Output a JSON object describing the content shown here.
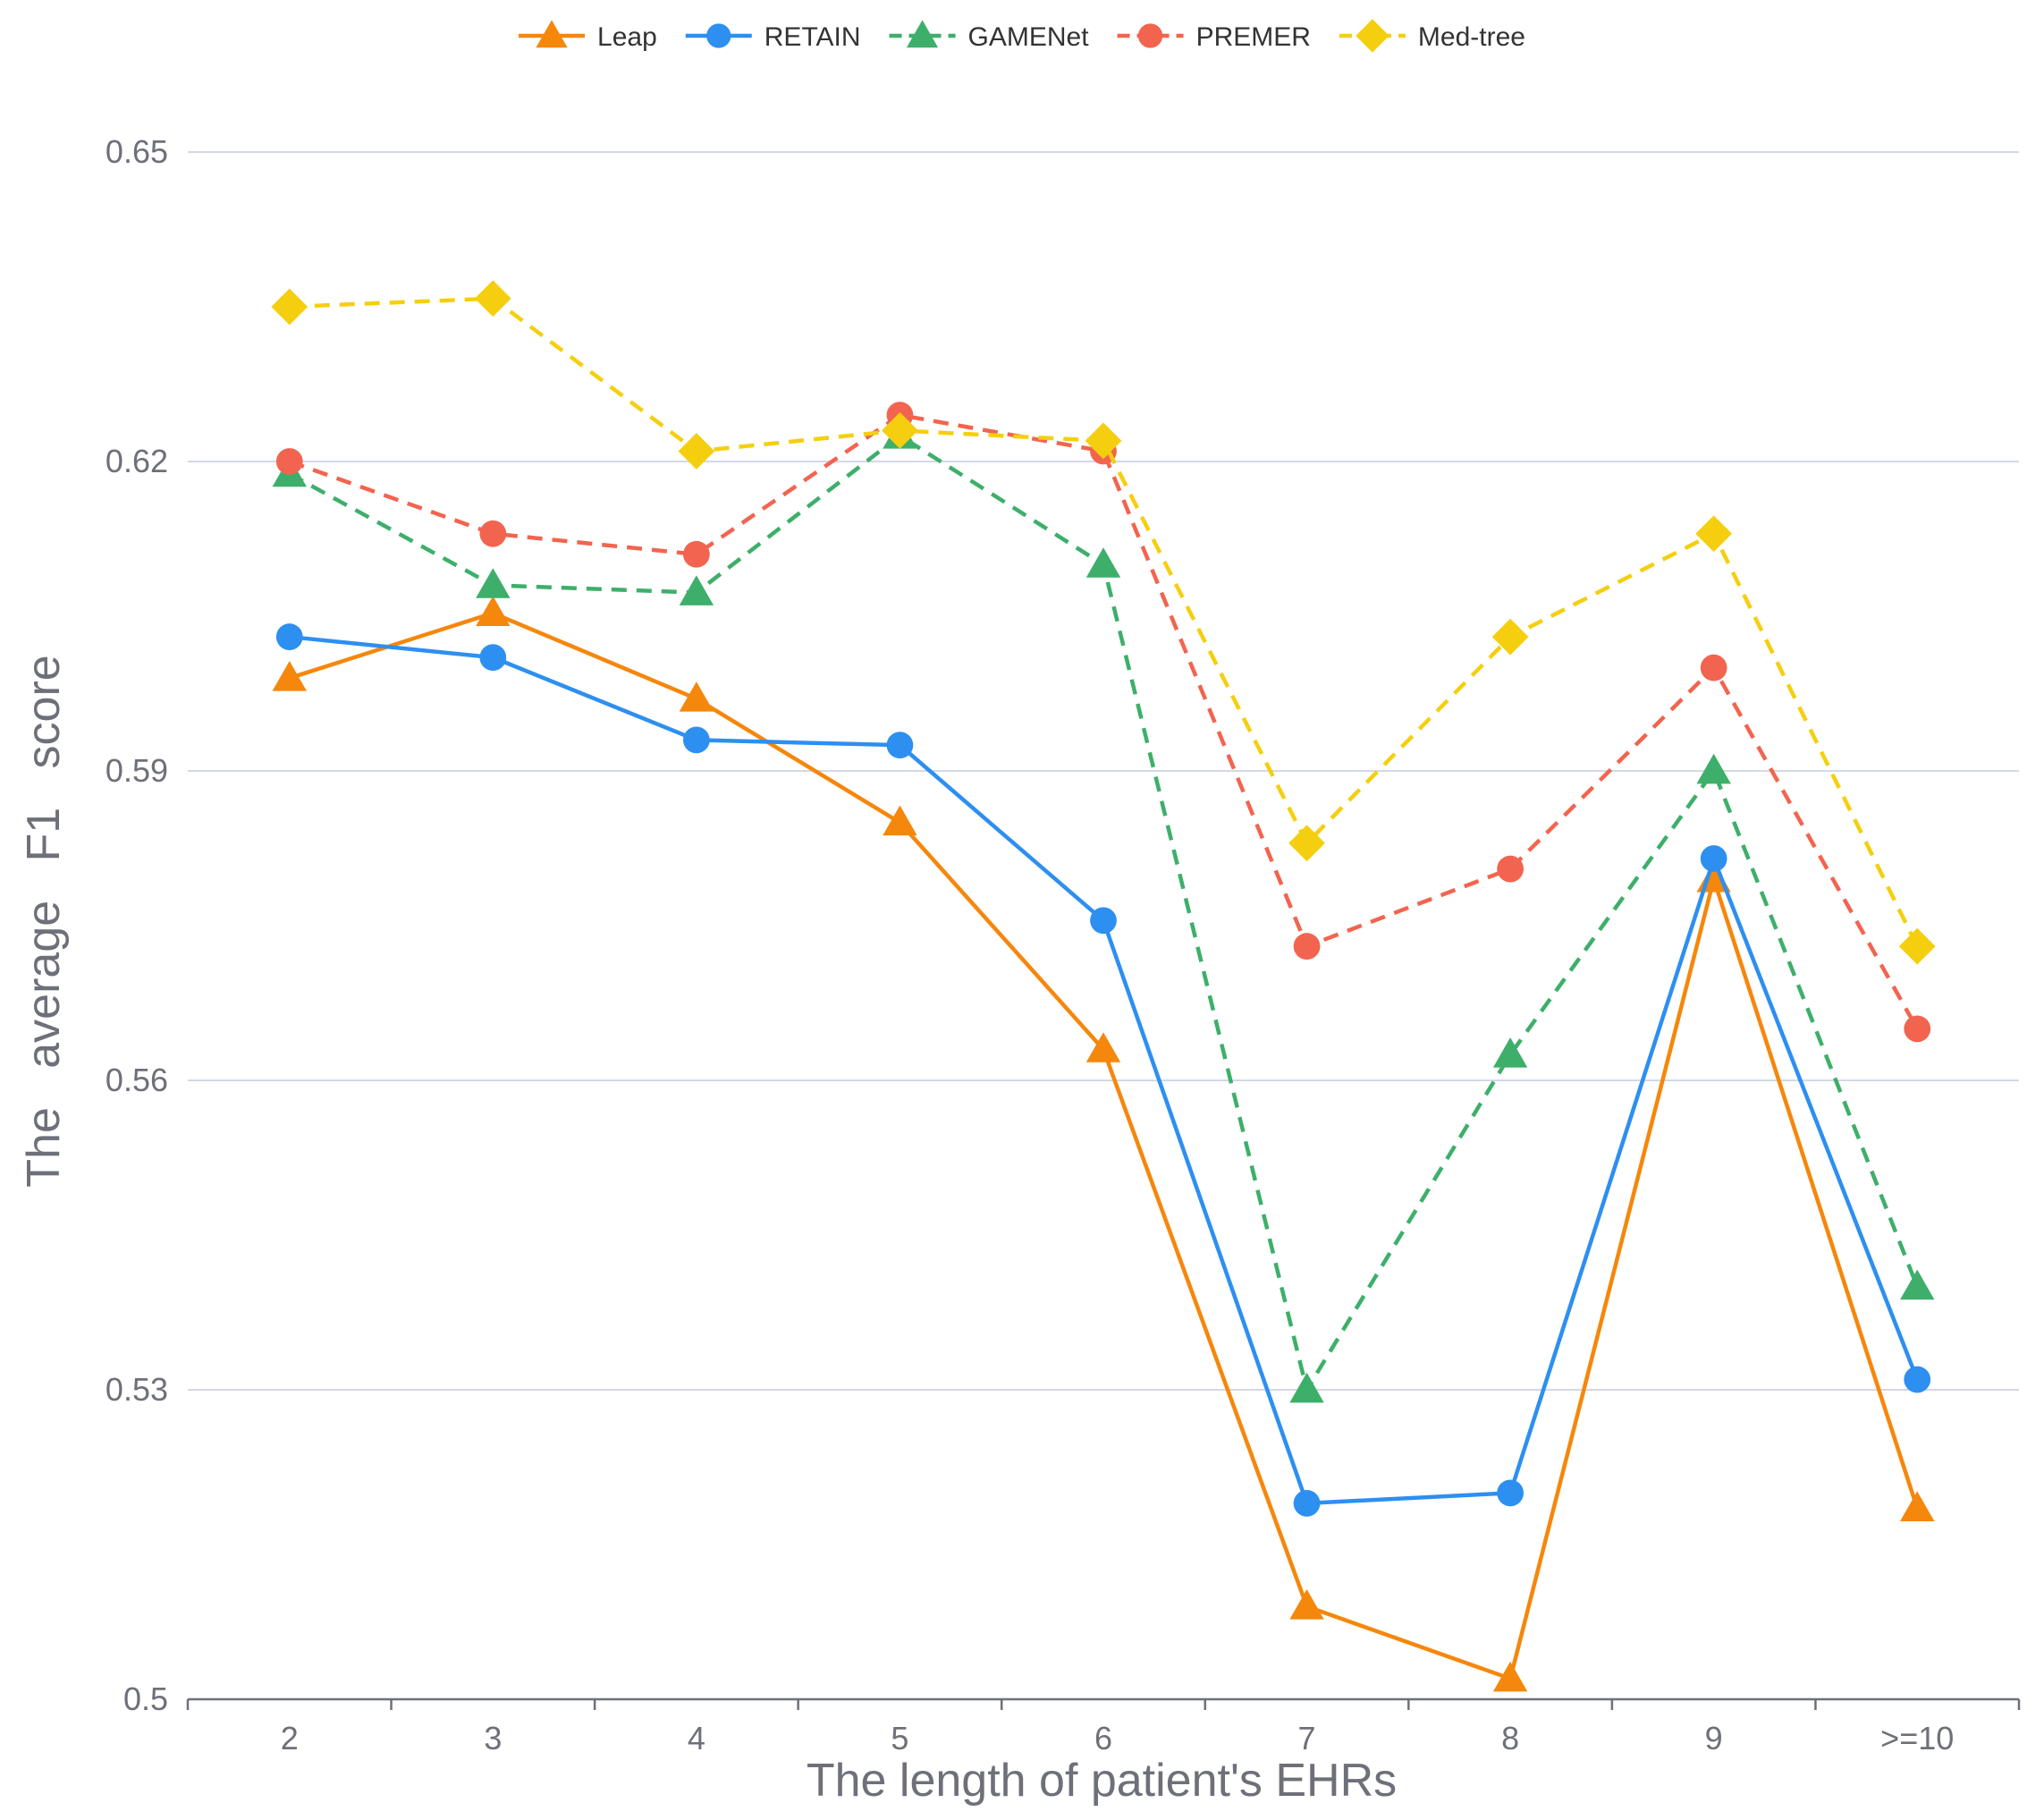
{
  "chart_data": {
    "type": "line",
    "title": "",
    "xlabel": "The length of patient's EHRs",
    "ylabel": "The   average   F1   score",
    "categories": [
      "2",
      "3",
      "4",
      "5",
      "6",
      "7",
      "8",
      "9",
      ">=10"
    ],
    "ylim": [
      0.5,
      0.65
    ],
    "yticks": [
      "0.5",
      "0.53",
      "0.56",
      "0.59",
      "0.62",
      "0.65"
    ],
    "grid": true,
    "legend_position": "top-center",
    "series": [
      {
        "name": "Leap",
        "color": "#f5870c",
        "marker": "triangle",
        "dashed": false,
        "values": [
          0.599,
          0.6053,
          0.597,
          0.585,
          0.563,
          0.509,
          0.502,
          0.5795,
          0.5185
        ]
      },
      {
        "name": "RETAIN",
        "color": "#2d8ff0",
        "marker": "circle",
        "dashed": false,
        "values": [
          0.603,
          0.601,
          0.593,
          0.5925,
          0.5755,
          0.519,
          0.52,
          0.5815,
          0.531
        ]
      },
      {
        "name": "GAMENet",
        "color": "#3daf6a",
        "marker": "triangle",
        "dashed": true,
        "values": [
          0.6188,
          0.608,
          0.6073,
          0.6225,
          0.61,
          0.53,
          0.5625,
          0.59,
          0.54
        ]
      },
      {
        "name": "PREMER",
        "color": "#f2644f",
        "marker": "circle",
        "dashed": true,
        "values": [
          0.62,
          0.613,
          0.611,
          0.6245,
          0.621,
          0.573,
          0.5805,
          0.6,
          0.565
        ]
      },
      {
        "name": "Med-tree",
        "color": "#f5cf0f",
        "marker": "diamond",
        "dashed": true,
        "values": [
          0.635,
          0.6358,
          0.621,
          0.623,
          0.622,
          0.583,
          0.603,
          0.613,
          0.573
        ]
      }
    ]
  }
}
